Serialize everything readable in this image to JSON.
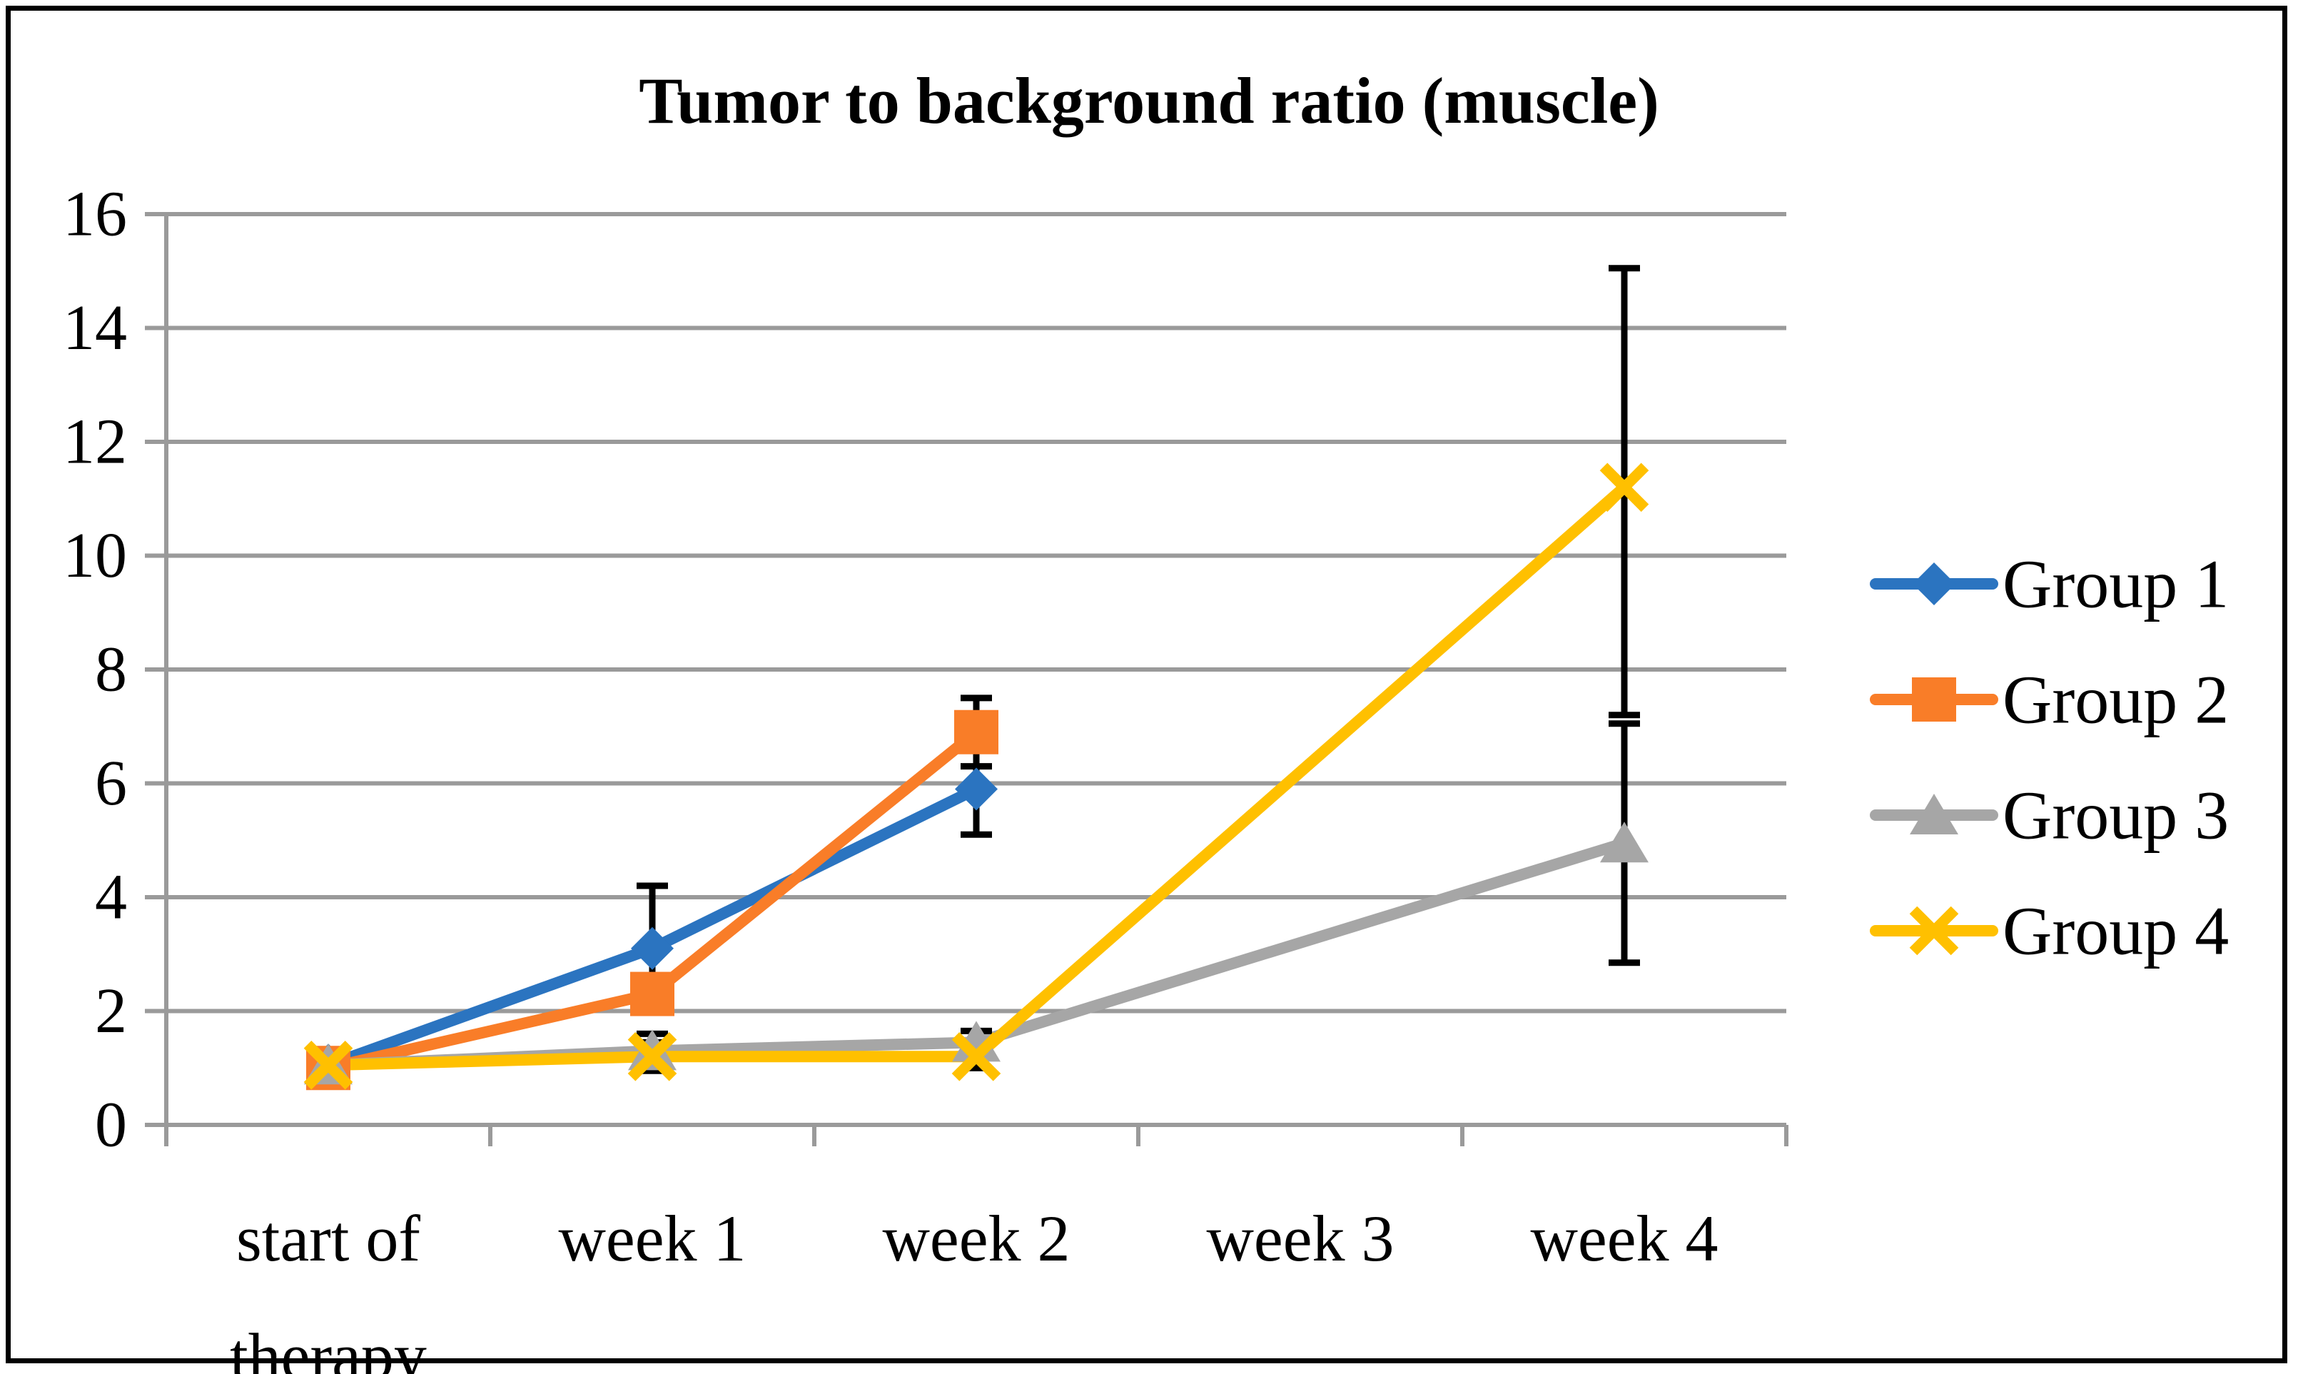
{
  "title": "Tumor to background ratio (muscle)",
  "colors": {
    "background": "#ffffff",
    "border": "#000000",
    "gridline": "#9a9a9a",
    "error_bar": "#000000",
    "text": "#000000",
    "group1_blue": "#2b74c0",
    "group2_orange": "#f97d28",
    "group3_gray": "#a6a6a6",
    "group4_yellow": "#ffc000"
  },
  "chart_data": {
    "type": "line",
    "title": "Tumor to background ratio (muscle)",
    "categories": [
      "start of therapy",
      "week 1",
      "week 2",
      "week 3",
      "week 4"
    ],
    "categories_display": [
      [
        "start of",
        "therapy"
      ],
      [
        "week 1"
      ],
      [
        "week 2"
      ],
      [
        "week 3"
      ],
      [
        "week 4"
      ]
    ],
    "xlabel": "",
    "ylabel": "",
    "ylim": [
      0,
      16
    ],
    "ytick_step": 2,
    "ytick_labels": [
      "0",
      "2",
      "4",
      "6",
      "8",
      "10",
      "12",
      "14",
      "16"
    ],
    "grid": true,
    "legend_position": "right",
    "series": [
      {
        "name": "Group 1",
        "color": "#2b74c0",
        "marker": "diamond",
        "values": [
          1.05,
          3.1,
          5.9,
          null,
          null
        ],
        "errors": [
          null,
          1.1,
          0.8,
          null,
          null
        ]
      },
      {
        "name": "Group 2",
        "color": "#f97d28",
        "marker": "square",
        "values": [
          1.0,
          2.3,
          6.9,
          null,
          null
        ],
        "errors": [
          null,
          null,
          0.6,
          null,
          null
        ]
      },
      {
        "name": "Group 3",
        "color": "#a6a6a6",
        "marker": "triangle",
        "values": [
          1.05,
          1.3,
          1.45,
          null,
          4.95
        ],
        "errors": [
          null,
          0.3,
          [
            0.45,
            0.2
          ],
          null,
          2.1
        ]
      },
      {
        "name": "Group 4",
        "color": "#ffc000",
        "marker": "x",
        "values": [
          1.05,
          1.2,
          1.2,
          null,
          11.2
        ],
        "errors": [
          null,
          0.25,
          0.2,
          null,
          [
            4.0,
            3.85
          ]
        ]
      }
    ]
  }
}
